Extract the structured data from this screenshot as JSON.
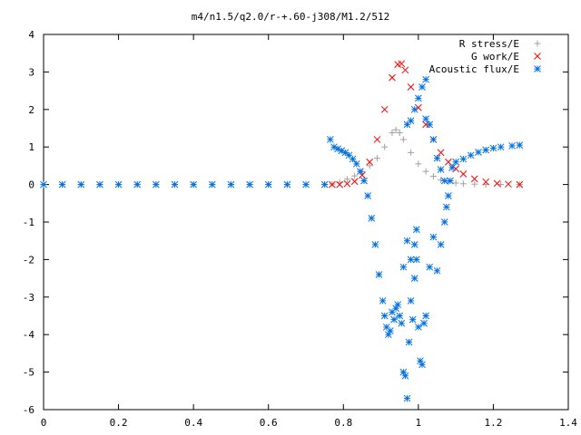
{
  "chart_data": {
    "type": "scatter",
    "title": "m4/n1.5/q2.0/r-+.60-j308/M1.2/512",
    "xlabel": "",
    "ylabel": "",
    "xlim": [
      0,
      1.4
    ],
    "ylim": [
      -6,
      4
    ],
    "xticks": [
      "0",
      "0.2",
      "0.4",
      "0.6",
      "0.8",
      "1",
      "1.2",
      "1.4"
    ],
    "yticks": [
      "4",
      "3",
      "2",
      "1",
      "0",
      "-1",
      "-2",
      "-3",
      "-4",
      "-5",
      "-6"
    ],
    "grid": false,
    "legend_position": "top-right",
    "series": [
      {
        "name": "R stress/E",
        "marker": "plus",
        "color": "#a0a0a0",
        "points": [
          [
            0.0,
            0
          ],
          [
            0.05,
            0
          ],
          [
            0.1,
            0
          ],
          [
            0.15,
            0
          ],
          [
            0.2,
            0
          ],
          [
            0.25,
            0
          ],
          [
            0.3,
            0
          ],
          [
            0.35,
            0
          ],
          [
            0.4,
            0
          ],
          [
            0.45,
            0
          ],
          [
            0.5,
            0
          ],
          [
            0.55,
            0
          ],
          [
            0.6,
            0
          ],
          [
            0.65,
            0
          ],
          [
            0.7,
            0
          ],
          [
            0.75,
            0
          ],
          [
            0.77,
            0.01
          ],
          [
            0.79,
            0.06
          ],
          [
            0.81,
            0.14
          ],
          [
            0.83,
            0.23
          ],
          [
            0.85,
            0.34
          ],
          [
            0.87,
            0.5
          ],
          [
            0.89,
            0.7
          ],
          [
            0.91,
            1.0
          ],
          [
            0.93,
            1.38
          ],
          [
            0.94,
            1.46
          ],
          [
            0.95,
            1.38
          ],
          [
            0.96,
            1.2
          ],
          [
            0.98,
            0.85
          ],
          [
            1.0,
            0.55
          ],
          [
            1.02,
            0.35
          ],
          [
            1.04,
            0.22
          ],
          [
            1.06,
            0.12
          ],
          [
            1.08,
            0.07
          ],
          [
            1.1,
            0.04
          ],
          [
            1.12,
            0.02
          ],
          [
            1.15,
            0.01
          ],
          [
            1.18,
            0
          ],
          [
            1.22,
            0
          ],
          [
            1.27,
            0
          ]
        ]
      },
      {
        "name": "G work/E",
        "marker": "cross",
        "color": "#ff0000",
        "points": [
          [
            0.77,
            0
          ],
          [
            0.79,
            0
          ],
          [
            0.81,
            0.02
          ],
          [
            0.83,
            0.08
          ],
          [
            0.85,
            0.25
          ],
          [
            0.87,
            0.6
          ],
          [
            0.89,
            1.2
          ],
          [
            0.91,
            2.0
          ],
          [
            0.93,
            2.85
          ],
          [
            0.945,
            3.2
          ],
          [
            0.955,
            3.22
          ],
          [
            0.965,
            3.05
          ],
          [
            0.98,
            2.6
          ],
          [
            1.0,
            2.05
          ],
          [
            1.02,
            1.6
          ],
          [
            1.04,
            1.2
          ],
          [
            1.06,
            0.85
          ],
          [
            1.08,
            0.6
          ],
          [
            1.1,
            0.42
          ],
          [
            1.12,
            0.28
          ],
          [
            1.15,
            0.15
          ],
          [
            1.18,
            0.07
          ],
          [
            1.21,
            0.03
          ],
          [
            1.24,
            0.01
          ],
          [
            1.27,
            0
          ]
        ]
      },
      {
        "name": "Acoustic flux/E",
        "marker": "star",
        "color": "#0070e0",
        "points": [
          [
            0.0,
            0
          ],
          [
            0.05,
            0
          ],
          [
            0.1,
            0
          ],
          [
            0.15,
            0
          ],
          [
            0.2,
            0
          ],
          [
            0.25,
            0
          ],
          [
            0.3,
            0
          ],
          [
            0.35,
            0
          ],
          [
            0.4,
            0
          ],
          [
            0.45,
            0
          ],
          [
            0.5,
            0
          ],
          [
            0.55,
            0
          ],
          [
            0.6,
            0
          ],
          [
            0.65,
            0
          ],
          [
            0.7,
            0
          ],
          [
            0.75,
            0
          ],
          [
            0.765,
            1.2
          ],
          [
            0.775,
            1.0
          ],
          [
            0.785,
            0.95
          ],
          [
            0.795,
            0.9
          ],
          [
            0.805,
            0.85
          ],
          [
            0.815,
            0.78
          ],
          [
            0.825,
            0.68
          ],
          [
            0.835,
            0.55
          ],
          [
            0.845,
            0.35
          ],
          [
            0.855,
            0.1
          ],
          [
            0.865,
            -0.3
          ],
          [
            0.875,
            -0.9
          ],
          [
            0.885,
            -1.6
          ],
          [
            0.895,
            -2.4
          ],
          [
            0.905,
            -3.1
          ],
          [
            0.91,
            -3.5
          ],
          [
            0.915,
            -3.8
          ],
          [
            0.92,
            -4.0
          ],
          [
            0.925,
            -3.9
          ],
          [
            0.93,
            -3.4
          ],
          [
            0.935,
            -3.6
          ],
          [
            0.94,
            -3.3
          ],
          [
            0.945,
            -3.2
          ],
          [
            0.95,
            -3.5
          ],
          [
            0.955,
            -3.7
          ],
          [
            0.96,
            -5.0
          ],
          [
            0.965,
            -5.1
          ],
          [
            0.97,
            -5.7
          ],
          [
            0.975,
            -4.2
          ],
          [
            0.98,
            -3.1
          ],
          [
            0.985,
            -3.6
          ],
          [
            0.99,
            -1.6
          ],
          [
            0.995,
            -1.2
          ],
          [
            1.0,
            -3.8
          ],
          [
            1.005,
            -4.7
          ],
          [
            1.01,
            -4.8
          ],
          [
            1.015,
            -3.7
          ],
          [
            1.02,
            -3.5
          ],
          [
            0.96,
            -2.2
          ],
          [
            0.97,
            -1.5
          ],
          [
            0.98,
            -2.0
          ],
          [
            0.99,
            -2.5
          ],
          [
            0.995,
            -2.0
          ],
          [
            1.03,
            -2.2
          ],
          [
            1.04,
            -1.4
          ],
          [
            1.05,
            -2.3
          ],
          [
            1.06,
            -1.6
          ],
          [
            1.07,
            -1.0
          ],
          [
            1.075,
            -0.6
          ],
          [
            1.08,
            -0.3
          ],
          [
            1.085,
            0.1
          ],
          [
            1.09,
            0.45
          ],
          [
            1.1,
            0.6
          ],
          [
            1.12,
            0.68
          ],
          [
            1.14,
            0.78
          ],
          [
            1.16,
            0.86
          ],
          [
            1.18,
            0.92
          ],
          [
            1.2,
            0.97
          ],
          [
            1.22,
            1.0
          ],
          [
            1.25,
            1.03
          ],
          [
            1.27,
            1.05
          ],
          [
            0.97,
            1.6
          ],
          [
            0.98,
            1.7
          ],
          [
            0.99,
            2.0
          ],
          [
            1.0,
            2.3
          ],
          [
            1.01,
            2.6
          ],
          [
            1.02,
            2.8
          ],
          [
            1.02,
            1.75
          ],
          [
            1.03,
            1.6
          ],
          [
            1.04,
            1.2
          ],
          [
            1.05,
            0.7
          ],
          [
            1.06,
            0.4
          ],
          [
            1.07,
            0.1
          ]
        ]
      }
    ]
  }
}
